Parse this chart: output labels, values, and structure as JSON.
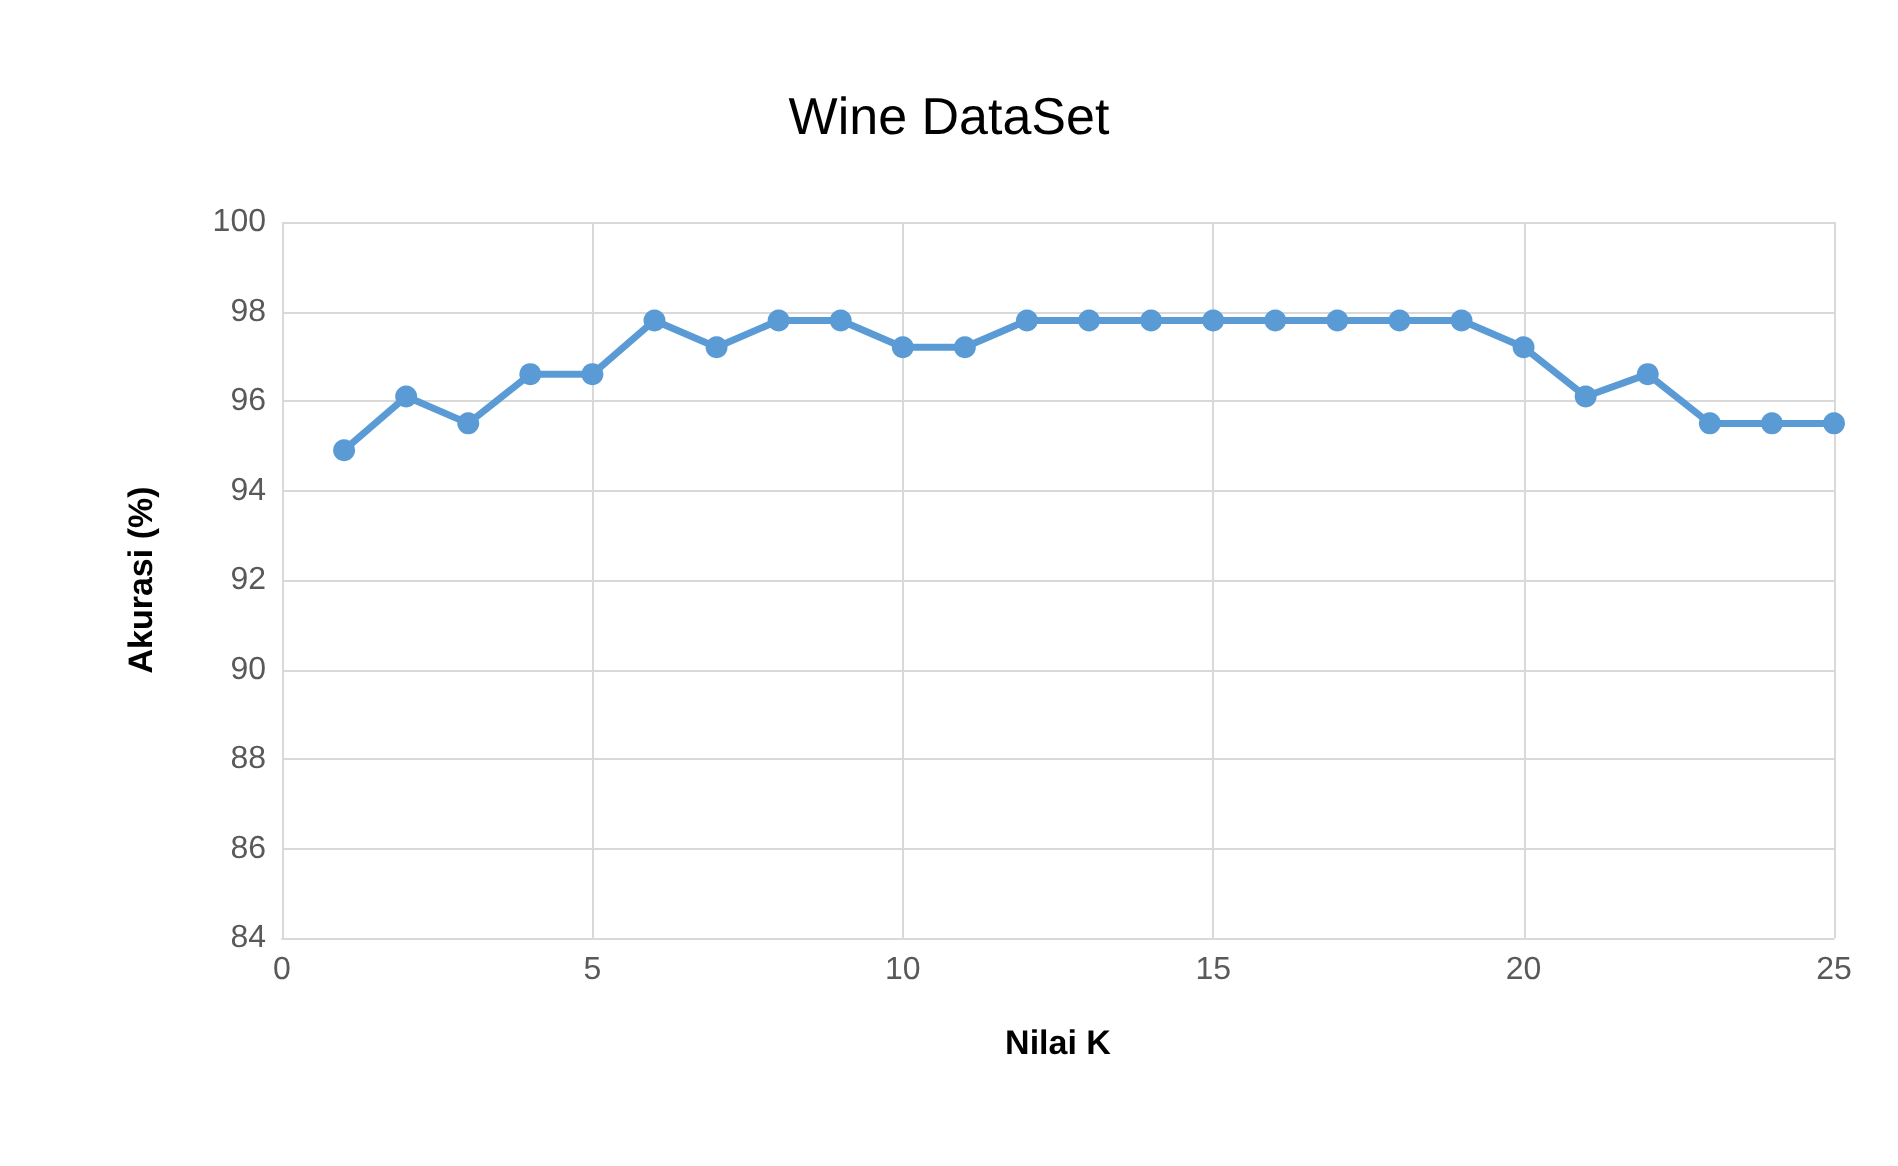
{
  "chart_data": {
    "type": "line",
    "title": "Wine DataSet",
    "xlabel": "Nilai K",
    "ylabel": "Akurasi (%)",
    "x": [
      1,
      2,
      3,
      4,
      5,
      6,
      7,
      8,
      9,
      10,
      11,
      12,
      13,
      14,
      15,
      16,
      17,
      18,
      19,
      20,
      21,
      22,
      23,
      24,
      25
    ],
    "series": [
      {
        "color": "#5b9bd5",
        "values": [
          94.9,
          96.1,
          95.5,
          96.6,
          96.6,
          97.8,
          97.2,
          97.8,
          97.8,
          97.2,
          97.2,
          97.8,
          97.8,
          97.8,
          97.8,
          97.8,
          97.8,
          97.8,
          97.8,
          97.2,
          96.1,
          96.6,
          95.5,
          95.5,
          95.5
        ]
      }
    ],
    "xlim": [
      0,
      25
    ],
    "xticks": [
      0,
      5,
      10,
      15,
      20,
      25
    ],
    "ylim": [
      84,
      100
    ],
    "yticks": [
      84,
      86,
      88,
      90,
      92,
      94,
      96,
      98,
      100
    ],
    "grid": true,
    "marker": "circle",
    "line_style": "solid"
  }
}
